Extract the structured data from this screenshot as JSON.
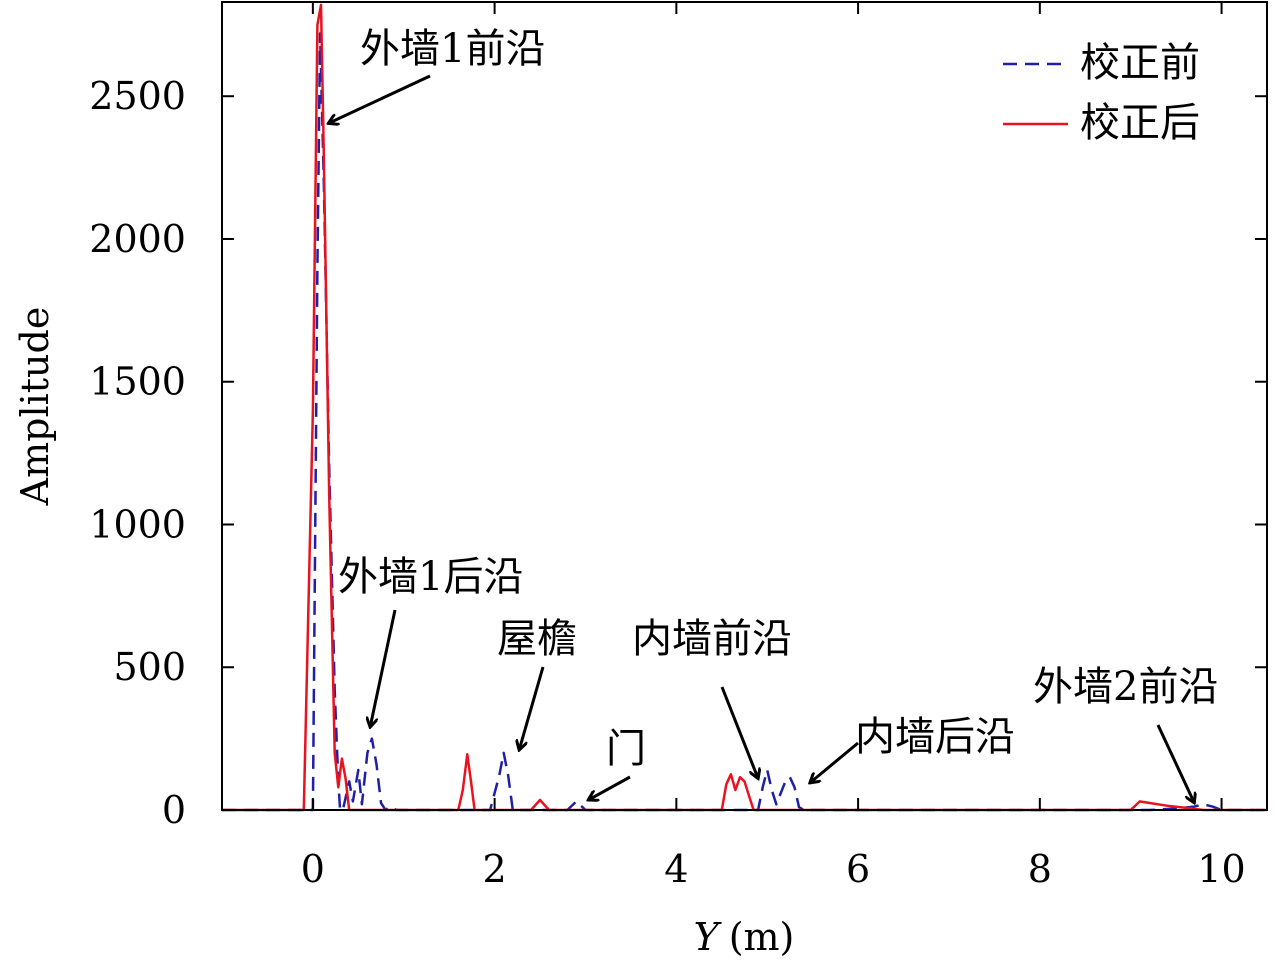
{
  "chart_data": {
    "type": "line",
    "xlabel_var": "Y",
    "xlabel_unit": "(m)",
    "ylabel": "Amplitude",
    "xlim": [
      -1,
      10.5
    ],
    "ylim": [
      0,
      2830
    ],
    "xticks": [
      0,
      2,
      4,
      6,
      8,
      10
    ],
    "yticks": [
      0,
      500,
      1000,
      1500,
      2000,
      2500
    ],
    "grid": false,
    "legend_position": "top-right",
    "series": [
      {
        "name": "校正前",
        "color": "#1f1fa8",
        "style": "dashed",
        "points": [
          [
            -1,
            0
          ],
          [
            0.0,
            0
          ],
          [
            0.05,
            1900
          ],
          [
            0.08,
            2720
          ],
          [
            0.12,
            2200
          ],
          [
            0.18,
            1200
          ],
          [
            0.24,
            420
          ],
          [
            0.28,
            100
          ],
          [
            0.3,
            0
          ],
          [
            0.33,
            0
          ],
          [
            0.4,
            100
          ],
          [
            0.44,
            30
          ],
          [
            0.5,
            140
          ],
          [
            0.54,
            20
          ],
          [
            0.6,
            200
          ],
          [
            0.65,
            250
          ],
          [
            0.7,
            160
          ],
          [
            0.75,
            25
          ],
          [
            0.8,
            0
          ],
          [
            0.85,
            12
          ],
          [
            0.92,
            0
          ],
          [
            1.95,
            0
          ],
          [
            2.05,
            120
          ],
          [
            2.1,
            200
          ],
          [
            2.15,
            120
          ],
          [
            2.2,
            0
          ],
          [
            2.8,
            0
          ],
          [
            2.9,
            30
          ],
          [
            3.0,
            0
          ],
          [
            4.9,
            0
          ],
          [
            4.95,
            80
          ],
          [
            5.0,
            140
          ],
          [
            5.05,
            70
          ],
          [
            5.1,
            20
          ],
          [
            5.2,
            100
          ],
          [
            5.25,
            115
          ],
          [
            5.3,
            80
          ],
          [
            5.35,
            10
          ],
          [
            5.4,
            0
          ],
          [
            9.2,
            0
          ],
          [
            9.5,
            5
          ],
          [
            9.7,
            12
          ],
          [
            9.8,
            20
          ],
          [
            9.9,
            12
          ],
          [
            10.0,
            0
          ],
          [
            10.5,
            0
          ]
        ]
      },
      {
        "name": "校正后",
        "color": "#e8131f",
        "style": "solid",
        "points": [
          [
            -1,
            0
          ],
          [
            -0.1,
            0
          ],
          [
            0.0,
            1400
          ],
          [
            0.05,
            2750
          ],
          [
            0.09,
            2820
          ],
          [
            0.12,
            2300
          ],
          [
            0.18,
            1100
          ],
          [
            0.24,
            200
          ],
          [
            0.28,
            80
          ],
          [
            0.32,
            180
          ],
          [
            0.36,
            110
          ],
          [
            0.4,
            0
          ],
          [
            1.6,
            0
          ],
          [
            1.65,
            70
          ],
          [
            1.7,
            195
          ],
          [
            1.74,
            100
          ],
          [
            1.78,
            0
          ],
          [
            2.4,
            0
          ],
          [
            2.5,
            35
          ],
          [
            2.6,
            0
          ],
          [
            4.5,
            0
          ],
          [
            4.55,
            90
          ],
          [
            4.6,
            125
          ],
          [
            4.65,
            70
          ],
          [
            4.7,
            115
          ],
          [
            4.75,
            100
          ],
          [
            4.8,
            50
          ],
          [
            4.85,
            0
          ],
          [
            9.0,
            0
          ],
          [
            9.1,
            30
          ],
          [
            9.2,
            25
          ],
          [
            9.4,
            15
          ],
          [
            9.6,
            8
          ],
          [
            9.8,
            0
          ],
          [
            10.5,
            0
          ]
        ]
      }
    ],
    "annotations": [
      {
        "text": "外墙1前沿",
        "x": 0.17,
        "y": 2405
      },
      {
        "text": "外墙1后沿",
        "x": 0.63,
        "y": 290
      },
      {
        "text": "屋檐",
        "x": 2.27,
        "y": 210
      },
      {
        "text": "门",
        "x": 3.03,
        "y": 35
      },
      {
        "text": "内墙前沿",
        "x": 4.9,
        "y": 110
      },
      {
        "text": "内墙后沿",
        "x": 5.47,
        "y": 95
      },
      {
        "text": "外墙2前沿",
        "x": 9.7,
        "y": 25
      }
    ]
  }
}
